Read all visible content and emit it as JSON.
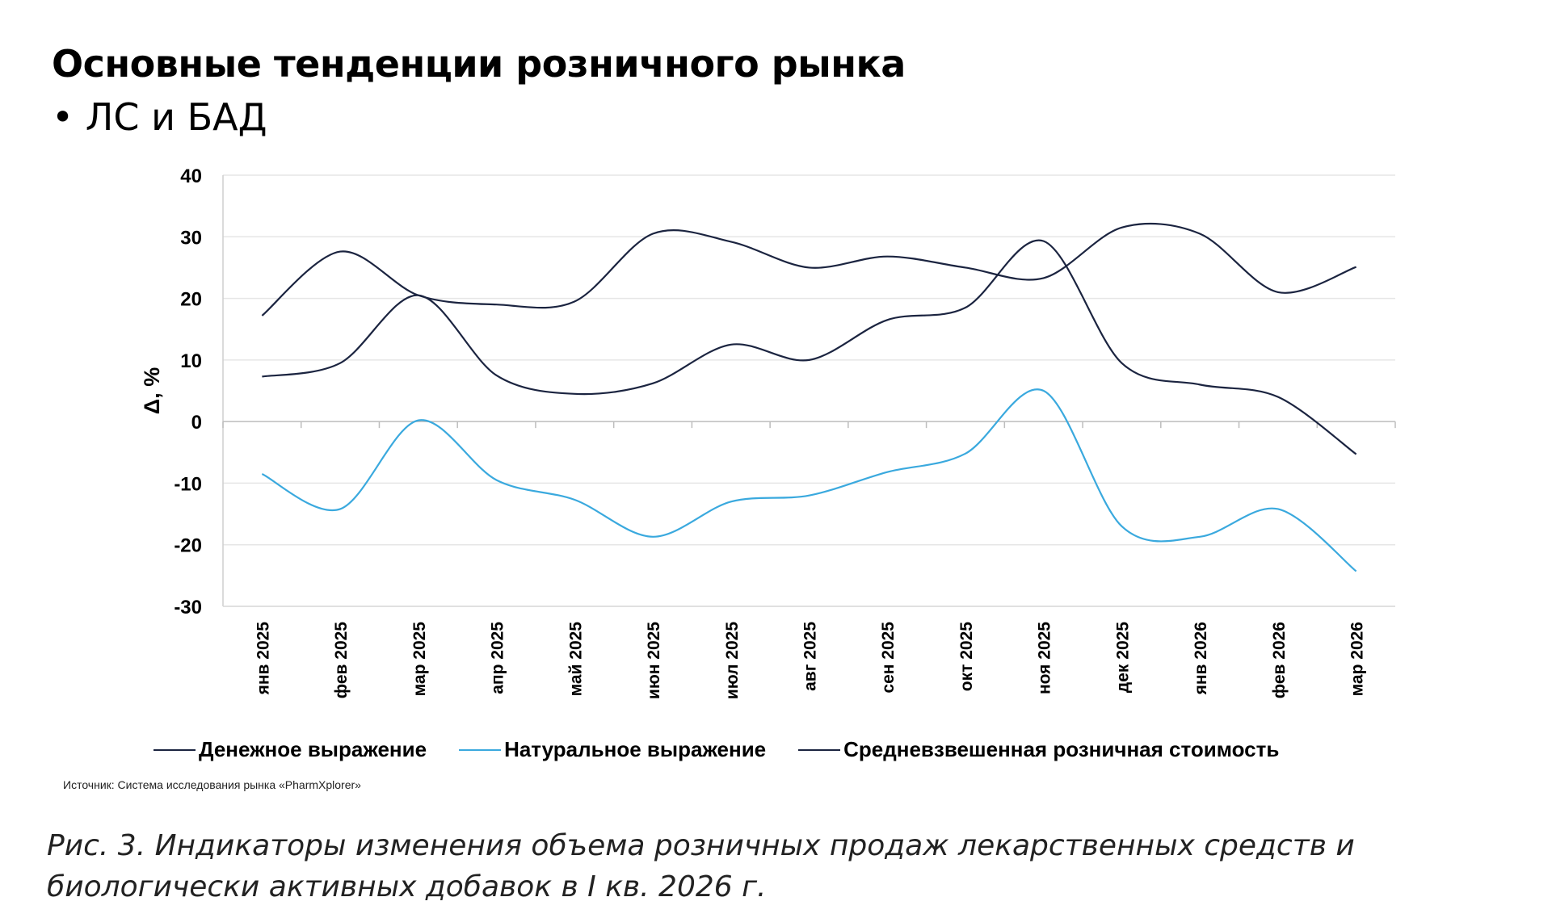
{
  "header": {
    "title": "Основные тенденции розничного рынка",
    "subtitle": "• ЛС и БАД"
  },
  "chart_data": {
    "type": "line",
    "ylabel": "Δ, %",
    "xlabel": "",
    "ylim": [
      -30,
      40
    ],
    "yticks": [
      "40",
      "30",
      "20",
      "10",
      "0",
      "-10",
      "-20",
      "-30"
    ],
    "categories": [
      "янв 2025",
      "фев 2025",
      "мар 2025",
      "апр 2025",
      "май 2025",
      "июн 2025",
      "июл 2025",
      "авг 2025",
      "сен 2025",
      "окт 2025",
      "ноя 2025",
      "дек 2025",
      "янв 2026",
      "фев 2026",
      "мар 2026"
    ],
    "grid": true,
    "legend_position": "bottom",
    "series": [
      {
        "name": "Денежное выражение",
        "color": "#1b2440",
        "values": [
          7.3,
          9.5,
          20.5,
          7.5,
          4.5,
          6.2,
          12.5,
          10.0,
          16.5,
          18.5,
          29.3,
          9.5,
          6.0,
          4.0,
          -5.3
        ]
      },
      {
        "name": "Натуральное выражение",
        "color": "#3aa9de",
        "values": [
          -8.5,
          -14.2,
          0.2,
          -9.5,
          -12.7,
          -18.7,
          -13.0,
          -12.0,
          -8.2,
          -5.2,
          5.0,
          -17.0,
          -18.7,
          -14.2,
          -24.3
        ]
      },
      {
        "name": "Средневзвешенная розничная стоимость",
        "color": "#1b2440",
        "values": [
          17.2,
          27.6,
          20.5,
          19.0,
          19.5,
          30.5,
          29.2,
          25.0,
          26.8,
          25.0,
          23.3,
          31.5,
          30.5,
          21.0,
          25.1
        ]
      }
    ]
  },
  "source": "Источник: Система исследования рынка «PharmXplorer»",
  "caption": "Рис. 3. Индикаторы изменения объема розничных продаж лекарственных средств и биологически активных добавок в I кв. 2026 г."
}
